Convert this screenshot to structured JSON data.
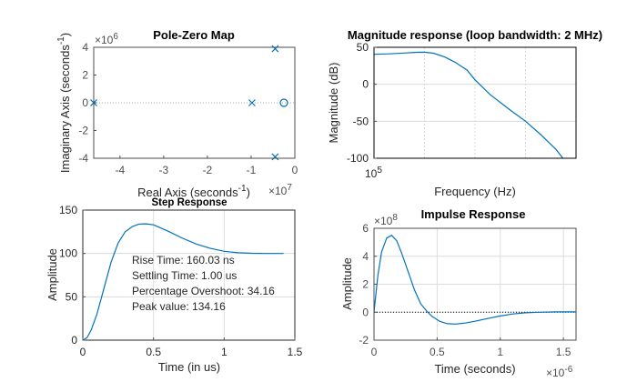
{
  "colors": {
    "line": "#0072bd",
    "grid": "#dcdcdc",
    "axis_gray": "#4d4d4d",
    "axis_dark": "#262626",
    "zero_line": "#000000"
  },
  "chart_data": [
    {
      "id": "pole-zero",
      "type": "scatter",
      "title": "Pole-Zero Map",
      "xlabel": "Real Axis (seconds",
      "xlabel_sup": "-1",
      "xlabel_end": ")",
      "ylabel": "Imaginary Axis (seconds",
      "ylabel_sup": "-1",
      "ylabel_end": ")",
      "x_multiplier": "×10",
      "x_multiplier_exp": "7",
      "y_multiplier": "×10",
      "y_multiplier_exp": "6",
      "xlim": [
        -4.6,
        0
      ],
      "ylim": [
        -4,
        4
      ],
      "xticks": [
        -4,
        -3,
        -2,
        -1,
        0
      ],
      "xtick_labels": [
        "-4",
        "-3",
        "-2",
        "-1",
        "0"
      ],
      "yticks": [
        -4,
        -2,
        0,
        2,
        4
      ],
      "ytick_labels": [
        "-4",
        "-2",
        "0",
        "2",
        "4"
      ],
      "grid": false,
      "poles": [
        {
          "re": -4.6,
          "im": 0
        },
        {
          "re": -0.98,
          "im": 0
        },
        {
          "re": -0.45,
          "im": 3.9
        },
        {
          "re": -0.45,
          "im": -3.9
        }
      ],
      "zeros": [
        {
          "re": -0.25,
          "im": 0
        }
      ]
    },
    {
      "id": "magnitude",
      "type": "line",
      "title": "Magnitude response (loop bandwidth: 2 MHz)",
      "xlabel": "Frequency  (Hz)",
      "ylabel": "Magnitude (dB)",
      "xscale": "log",
      "xlim": [
        100000,
        1000000000
      ],
      "ylim": [
        -100,
        50
      ],
      "xtick_labels": [
        "10",
        "5"
      ],
      "yticks": [
        -100,
        -50,
        0,
        50
      ],
      "ytick_labels": [
        "-100",
        "-50",
        "0",
        "50"
      ],
      "grid": true,
      "series": [
        {
          "name": "magnitude",
          "x": [
            100000,
            200000,
            400000,
            700000,
            1000000,
            1500000,
            2500000,
            4000000,
            7000000,
            10000000,
            20000000,
            50000000,
            100000000,
            200000000,
            400000000,
            550000000
          ],
          "y": [
            40.5,
            41.2,
            42.3,
            43.2,
            43.3,
            42,
            37,
            30,
            19,
            6,
            -14,
            -35,
            -50,
            -68,
            -88,
            -100
          ]
        }
      ]
    },
    {
      "id": "step",
      "type": "line",
      "title": "Step Response",
      "xlabel": "Time (in us)",
      "ylabel": "Amplitude",
      "xlim": [
        0,
        1.5
      ],
      "ylim": [
        0,
        150
      ],
      "xticks": [
        0,
        0.5,
        1,
        1.5
      ],
      "xtick_labels": [
        "0",
        "0.5",
        "1",
        "1.5"
      ],
      "yticks": [
        0,
        50,
        100,
        150
      ],
      "ytick_labels": [
        "0",
        "50",
        "100",
        "150"
      ],
      "grid": true,
      "annotations": [
        "Rise Time: 160.03 ns",
        "Settling Time: 1.00 us",
        "Percentage Overshoot: 34.16",
        "Peak value: 134.16"
      ],
      "series": [
        {
          "name": "step",
          "x": [
            0,
            0.03,
            0.06,
            0.1,
            0.15,
            0.2,
            0.25,
            0.3,
            0.35,
            0.4,
            0.45,
            0.5,
            0.6,
            0.7,
            0.8,
            0.9,
            1.0,
            1.1,
            1.2,
            1.3,
            1.42
          ],
          "y": [
            0,
            3,
            12,
            30,
            60,
            90,
            112,
            125,
            131,
            134,
            134.16,
            133,
            126,
            118,
            111,
            106,
            102.5,
            100.8,
            100.2,
            100,
            100
          ]
        }
      ]
    },
    {
      "id": "impulse",
      "type": "line",
      "title": "Impulse Response",
      "xlabel": "Time (seconds)",
      "ylabel": "Amplitude",
      "x_multiplier": "×10",
      "x_multiplier_exp": "-6",
      "y_multiplier": "×10",
      "y_multiplier_exp": "8",
      "xlim": [
        0,
        1.6
      ],
      "ylim": [
        -2,
        6
      ],
      "xticks": [
        0,
        0.5,
        1,
        1.5
      ],
      "xtick_labels": [
        "0",
        "0.5",
        "1",
        "1.5"
      ],
      "yticks": [
        -2,
        0,
        2,
        4,
        6
      ],
      "ytick_labels": [
        "-2",
        "0",
        "2",
        "4",
        "6"
      ],
      "grid": true,
      "series": [
        {
          "name": "impulse",
          "x": [
            0,
            0.03,
            0.06,
            0.1,
            0.14,
            0.18,
            0.22,
            0.27,
            0.32,
            0.37,
            0.42,
            0.46,
            0.52,
            0.58,
            0.65,
            0.72,
            0.8,
            0.9,
            1.0,
            1.1,
            1.2,
            1.3,
            1.45,
            1.6
          ],
          "y": [
            0,
            2.6,
            4.3,
            5.3,
            5.5,
            5.1,
            4.2,
            2.9,
            1.6,
            0.6,
            0.05,
            -0.3,
            -0.65,
            -0.82,
            -0.85,
            -0.78,
            -0.65,
            -0.45,
            -0.27,
            -0.13,
            -0.04,
            0,
            0.02,
            0.02
          ]
        }
      ]
    }
  ]
}
